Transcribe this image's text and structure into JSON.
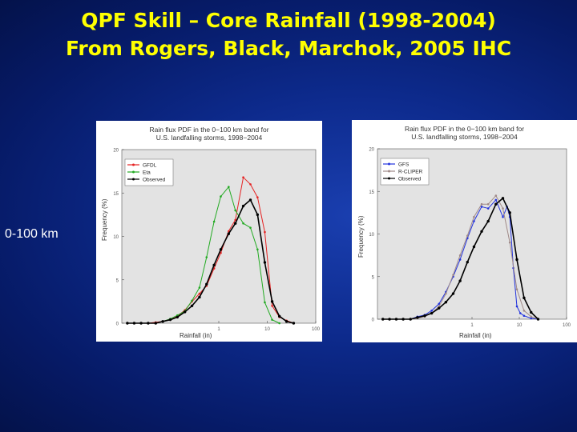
{
  "slide": {
    "title_line1": "QPF Skill – Core Rainfall (1998-2004)",
    "title_line2": "From Rogers, Black, Marchok, 2005 IHC",
    "side_label": "0-100 km"
  },
  "chart_data": [
    {
      "type": "line",
      "title_line1": "Rain flux PDF in the 0−100 km band for",
      "title_line2": "U.S. landfalling storms, 1998−2004",
      "xlabel": "Rainfall (in)",
      "ylabel": "Frequency (%)",
      "xscale": "log",
      "xlim": [
        0.01,
        100
      ],
      "ylim": [
        0,
        20
      ],
      "xticks": [
        "1",
        "10",
        "100"
      ],
      "yticks": [
        "0",
        "5",
        "10",
        "15",
        "20"
      ],
      "legend_position": "top-left",
      "series": [
        {
          "name": "GFDL",
          "color": "#e52222",
          "x": [
            0.013,
            0.018,
            0.025,
            0.035,
            0.05,
            0.07,
            0.1,
            0.14,
            0.2,
            0.28,
            0.4,
            0.56,
            0.8,
            1.1,
            1.6,
            2.2,
            3.2,
            4.5,
            6.3,
            8.9,
            12.6,
            17.8,
            25,
            35
          ],
          "y": [
            0,
            0,
            0,
            0,
            0.1,
            0.2,
            0.4,
            0.8,
            1.5,
            2.5,
            3.4,
            4.3,
            6.3,
            8.1,
            10.6,
            11.9,
            16.8,
            16.0,
            14.5,
            10.5,
            2.0,
            0.7,
            0.3,
            0
          ]
        },
        {
          "name": "Eta",
          "color": "#22aa22",
          "x": [
            0.013,
            0.018,
            0.025,
            0.035,
            0.05,
            0.07,
            0.1,
            0.14,
            0.2,
            0.28,
            0.4,
            0.56,
            0.8,
            1.1,
            1.6,
            2.2,
            3.2,
            4.5,
            6.3,
            8.9,
            12.6,
            17.8
          ],
          "y": [
            0,
            0,
            0,
            0,
            0,
            0.2,
            0.5,
            0.9,
            1.4,
            2.6,
            4.1,
            7.6,
            11.7,
            14.6,
            15.7,
            13.0,
            11.5,
            11.0,
            8.5,
            2.4,
            0.4,
            0
          ]
        },
        {
          "name": "Observed",
          "color": "#000000",
          "x": [
            0.013,
            0.018,
            0.025,
            0.035,
            0.05,
            0.07,
            0.1,
            0.14,
            0.2,
            0.28,
            0.4,
            0.56,
            0.8,
            1.1,
            1.6,
            2.2,
            3.2,
            4.5,
            6.3,
            8.9,
            12.6,
            17.8,
            25,
            35
          ],
          "y": [
            0,
            0,
            0,
            0,
            0,
            0.2,
            0.4,
            0.7,
            1.3,
            2.0,
            3.0,
            4.5,
            6.7,
            8.5,
            10.3,
            11.5,
            13.5,
            14.2,
            12.5,
            7.0,
            2.5,
            0.8,
            0.2,
            0
          ]
        }
      ]
    },
    {
      "type": "line",
      "title_line1": "Rain flux PDF in the 0−100 km band for",
      "title_line2": "U.S. landfalling storms, 1998−2004",
      "xlabel": "Rainfall (in)",
      "ylabel": "Frequency (%)",
      "xscale": "log",
      "xlim": [
        0.01,
        100
      ],
      "ylim": [
        0,
        20
      ],
      "xticks": [
        "1",
        "10",
        "100"
      ],
      "yticks": [
        "0",
        "5",
        "10",
        "15",
        "20"
      ],
      "legend_position": "top-left",
      "series": [
        {
          "name": "GFS",
          "color": "#2233dd",
          "x": [
            0.013,
            0.018,
            0.025,
            0.035,
            0.05,
            0.07,
            0.1,
            0.14,
            0.2,
            0.28,
            0.4,
            0.56,
            0.8,
            1.1,
            1.6,
            2.2,
            3.2,
            4.5,
            5.5,
            6.3,
            7.5,
            8.9,
            10.5,
            12.6,
            17.8,
            25
          ],
          "y": [
            0,
            0,
            0,
            0,
            0,
            0.3,
            0.5,
            1.0,
            1.8,
            3.2,
            5.0,
            7.0,
            9.5,
            11.5,
            13.2,
            13.0,
            14.0,
            12.0,
            13.2,
            12.0,
            6.0,
            1.5,
            0.7,
            0.4,
            0.1,
            0
          ]
        },
        {
          "name": "R-CLIPER",
          "color": "#a08a88",
          "x": [
            0.013,
            0.018,
            0.025,
            0.035,
            0.05,
            0.07,
            0.1,
            0.14,
            0.2,
            0.28,
            0.4,
            0.56,
            0.8,
            1.1,
            1.6,
            2.2,
            3.2,
            4.5,
            6.3,
            8.9,
            12.6,
            17.8,
            25
          ],
          "y": [
            0,
            0,
            0,
            0,
            0,
            0.1,
            0.3,
            0.7,
            1.5,
            3.0,
            5.2,
            7.5,
            9.8,
            12.0,
            13.5,
            13.5,
            14.5,
            13.0,
            9.0,
            3.5,
            1.0,
            0.3,
            0
          ]
        },
        {
          "name": "Observed",
          "color": "#000000",
          "x": [
            0.013,
            0.018,
            0.025,
            0.035,
            0.05,
            0.07,
            0.1,
            0.14,
            0.2,
            0.28,
            0.4,
            0.56,
            0.8,
            1.1,
            1.6,
            2.2,
            3.2,
            4.5,
            6.3,
            8.9,
            12.6,
            17.8,
            25
          ],
          "y": [
            0,
            0,
            0,
            0,
            0,
            0.2,
            0.4,
            0.7,
            1.3,
            2.0,
            3.0,
            4.5,
            6.7,
            8.5,
            10.3,
            11.5,
            13.5,
            14.2,
            12.5,
            7.0,
            2.5,
            0.8,
            0
          ]
        }
      ]
    }
  ]
}
